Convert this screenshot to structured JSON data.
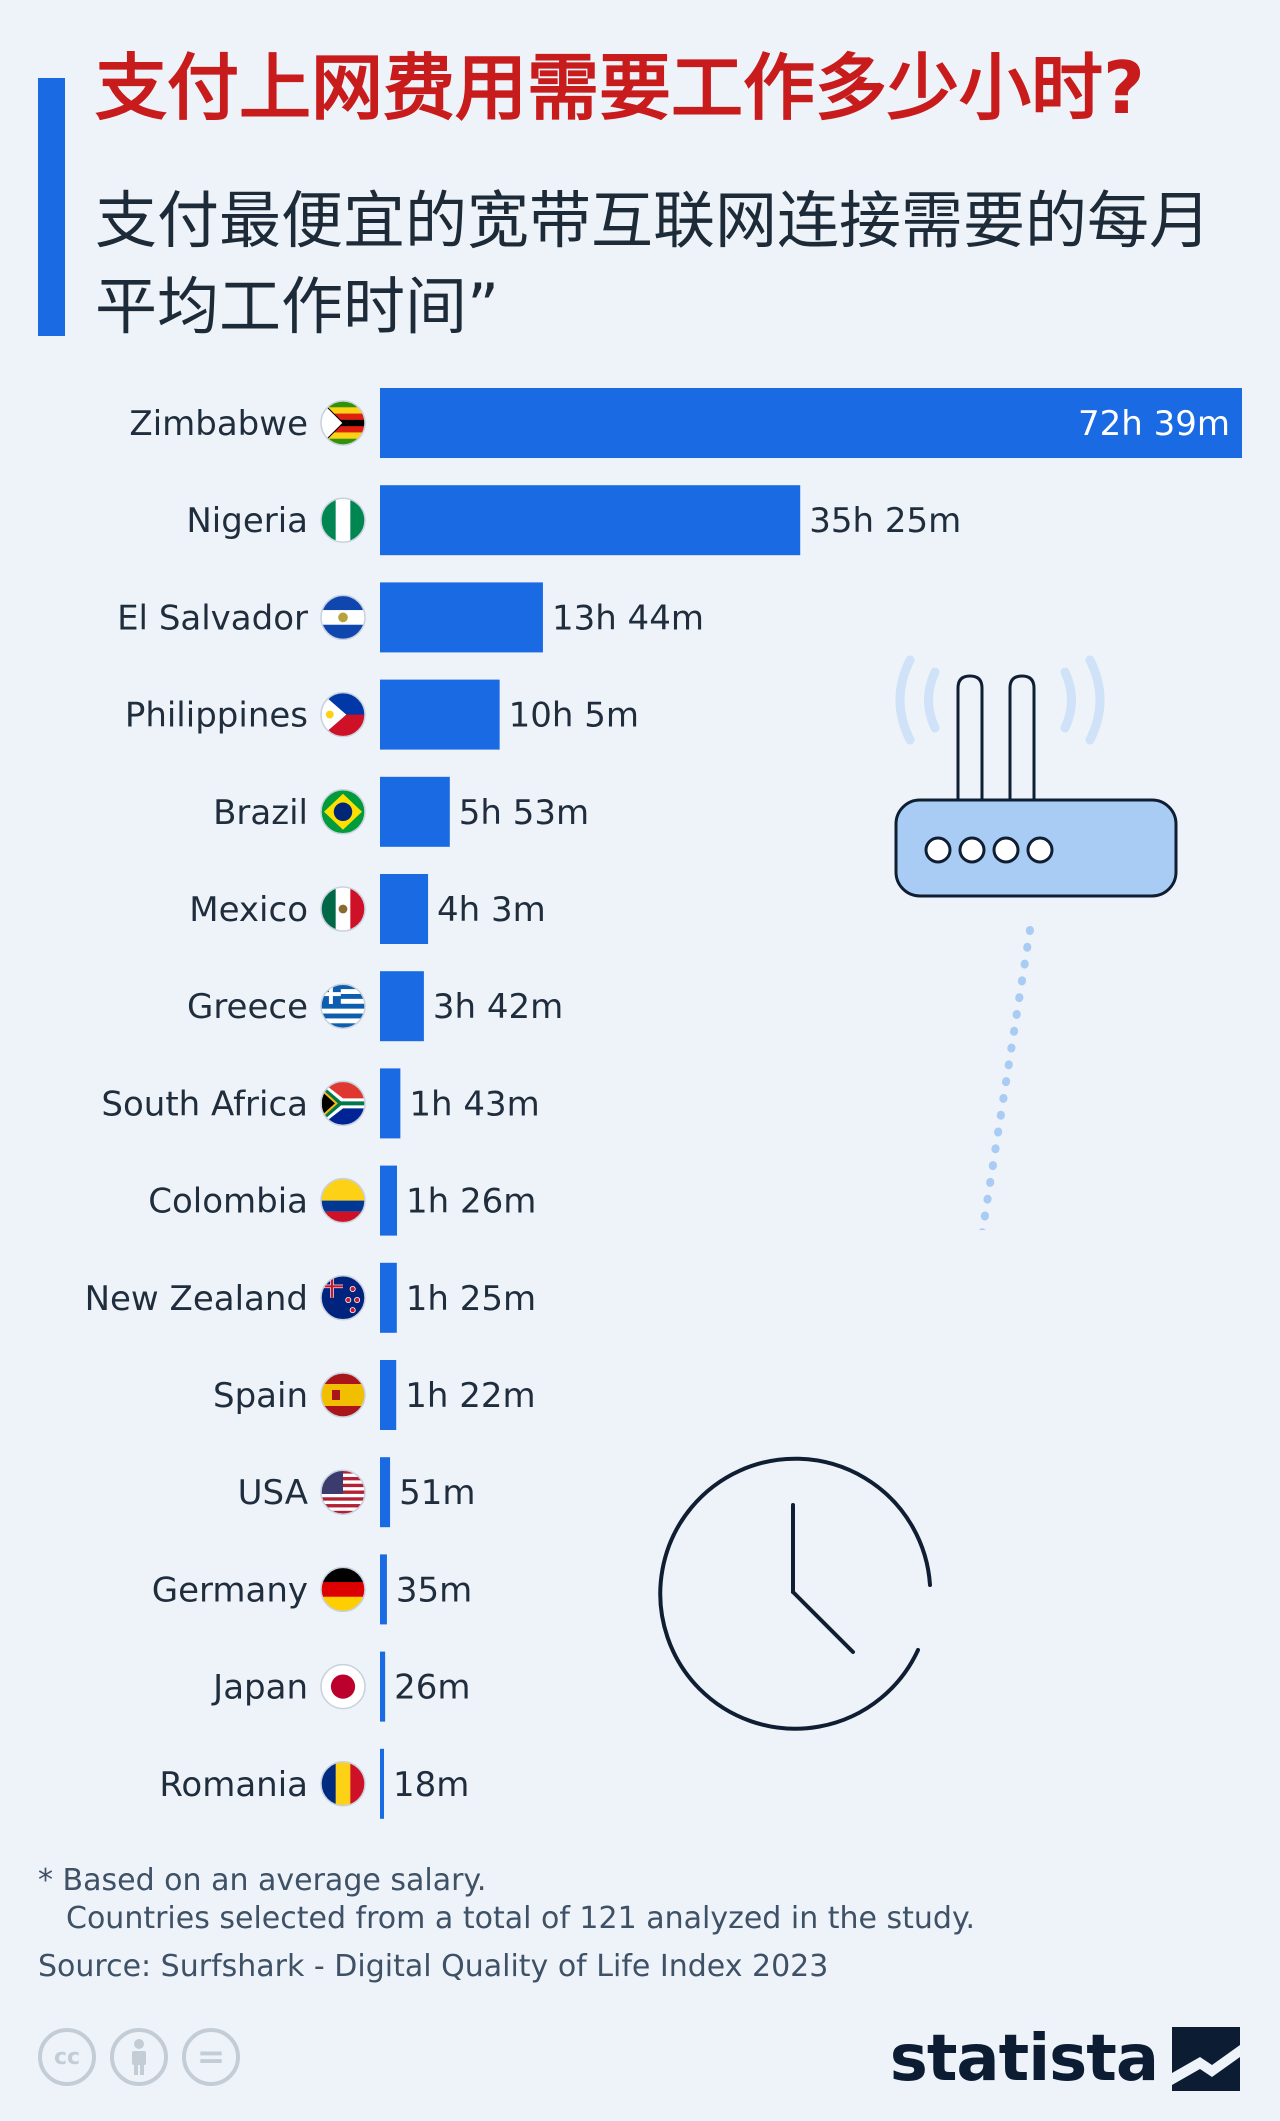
{
  "title": "支付上网费用需要工作多少小时?",
  "subtitle": "支付最便宜的宽带互联网连接需要的每月平均工作时间”",
  "chart_data": {
    "type": "bar",
    "orientation": "horizontal",
    "value_unit": "minutes",
    "bar_color": "#1a6ae4",
    "categories": [
      "Zimbabwe",
      "Nigeria",
      "El Salvador",
      "Philippines",
      "Brazil",
      "Mexico",
      "Greece",
      "South Africa",
      "Colombia",
      "New Zealand",
      "Spain",
      "USA",
      "Germany",
      "Japan",
      "Romania"
    ],
    "values": [
      4359,
      2125,
      824,
      605,
      353,
      243,
      222,
      103,
      86,
      85,
      82,
      51,
      35,
      26,
      18
    ],
    "data_labels": [
      "72h 39m",
      "35h 25m",
      "13h 44m",
      "10h 5m",
      "5h 53m",
      "4h 3m",
      "3h 42m",
      "1h 43m",
      "1h 26m",
      "1h 25m",
      "1h 22m",
      "51m",
      "35m",
      "26m",
      "18m"
    ],
    "flag_icons": [
      "zimbabwe-flag-icon",
      "nigeria-flag-icon",
      "el-salvador-flag-icon",
      "philippines-flag-icon",
      "brazil-flag-icon",
      "mexico-flag-icon",
      "greece-flag-icon",
      "south-africa-flag-icon",
      "colombia-flag-icon",
      "new-zealand-flag-icon",
      "spain-flag-icon",
      "usa-flag-icon",
      "germany-flag-icon",
      "japan-flag-icon",
      "romania-flag-icon"
    ],
    "grid": false
  },
  "footnote": {
    "line1": "* Based on an average salary.",
    "line2": "Countries selected from a total of 121 analyzed in the study."
  },
  "source": "Source: Surfshark - Digital Quality of Life Index 2023",
  "branding": {
    "logo_text": "statista",
    "license_icons": [
      "cc-icon",
      "attribution-icon",
      "no-derivatives-icon"
    ],
    "cc_text": "cc",
    "nd_text": "="
  },
  "illustrations": [
    "router-icon",
    "clock-icon"
  ],
  "colors": {
    "title": "#c81b1b",
    "accent": "#1a6ae4",
    "background": "#eef3f9",
    "router_fill": "#a9ccf5"
  }
}
